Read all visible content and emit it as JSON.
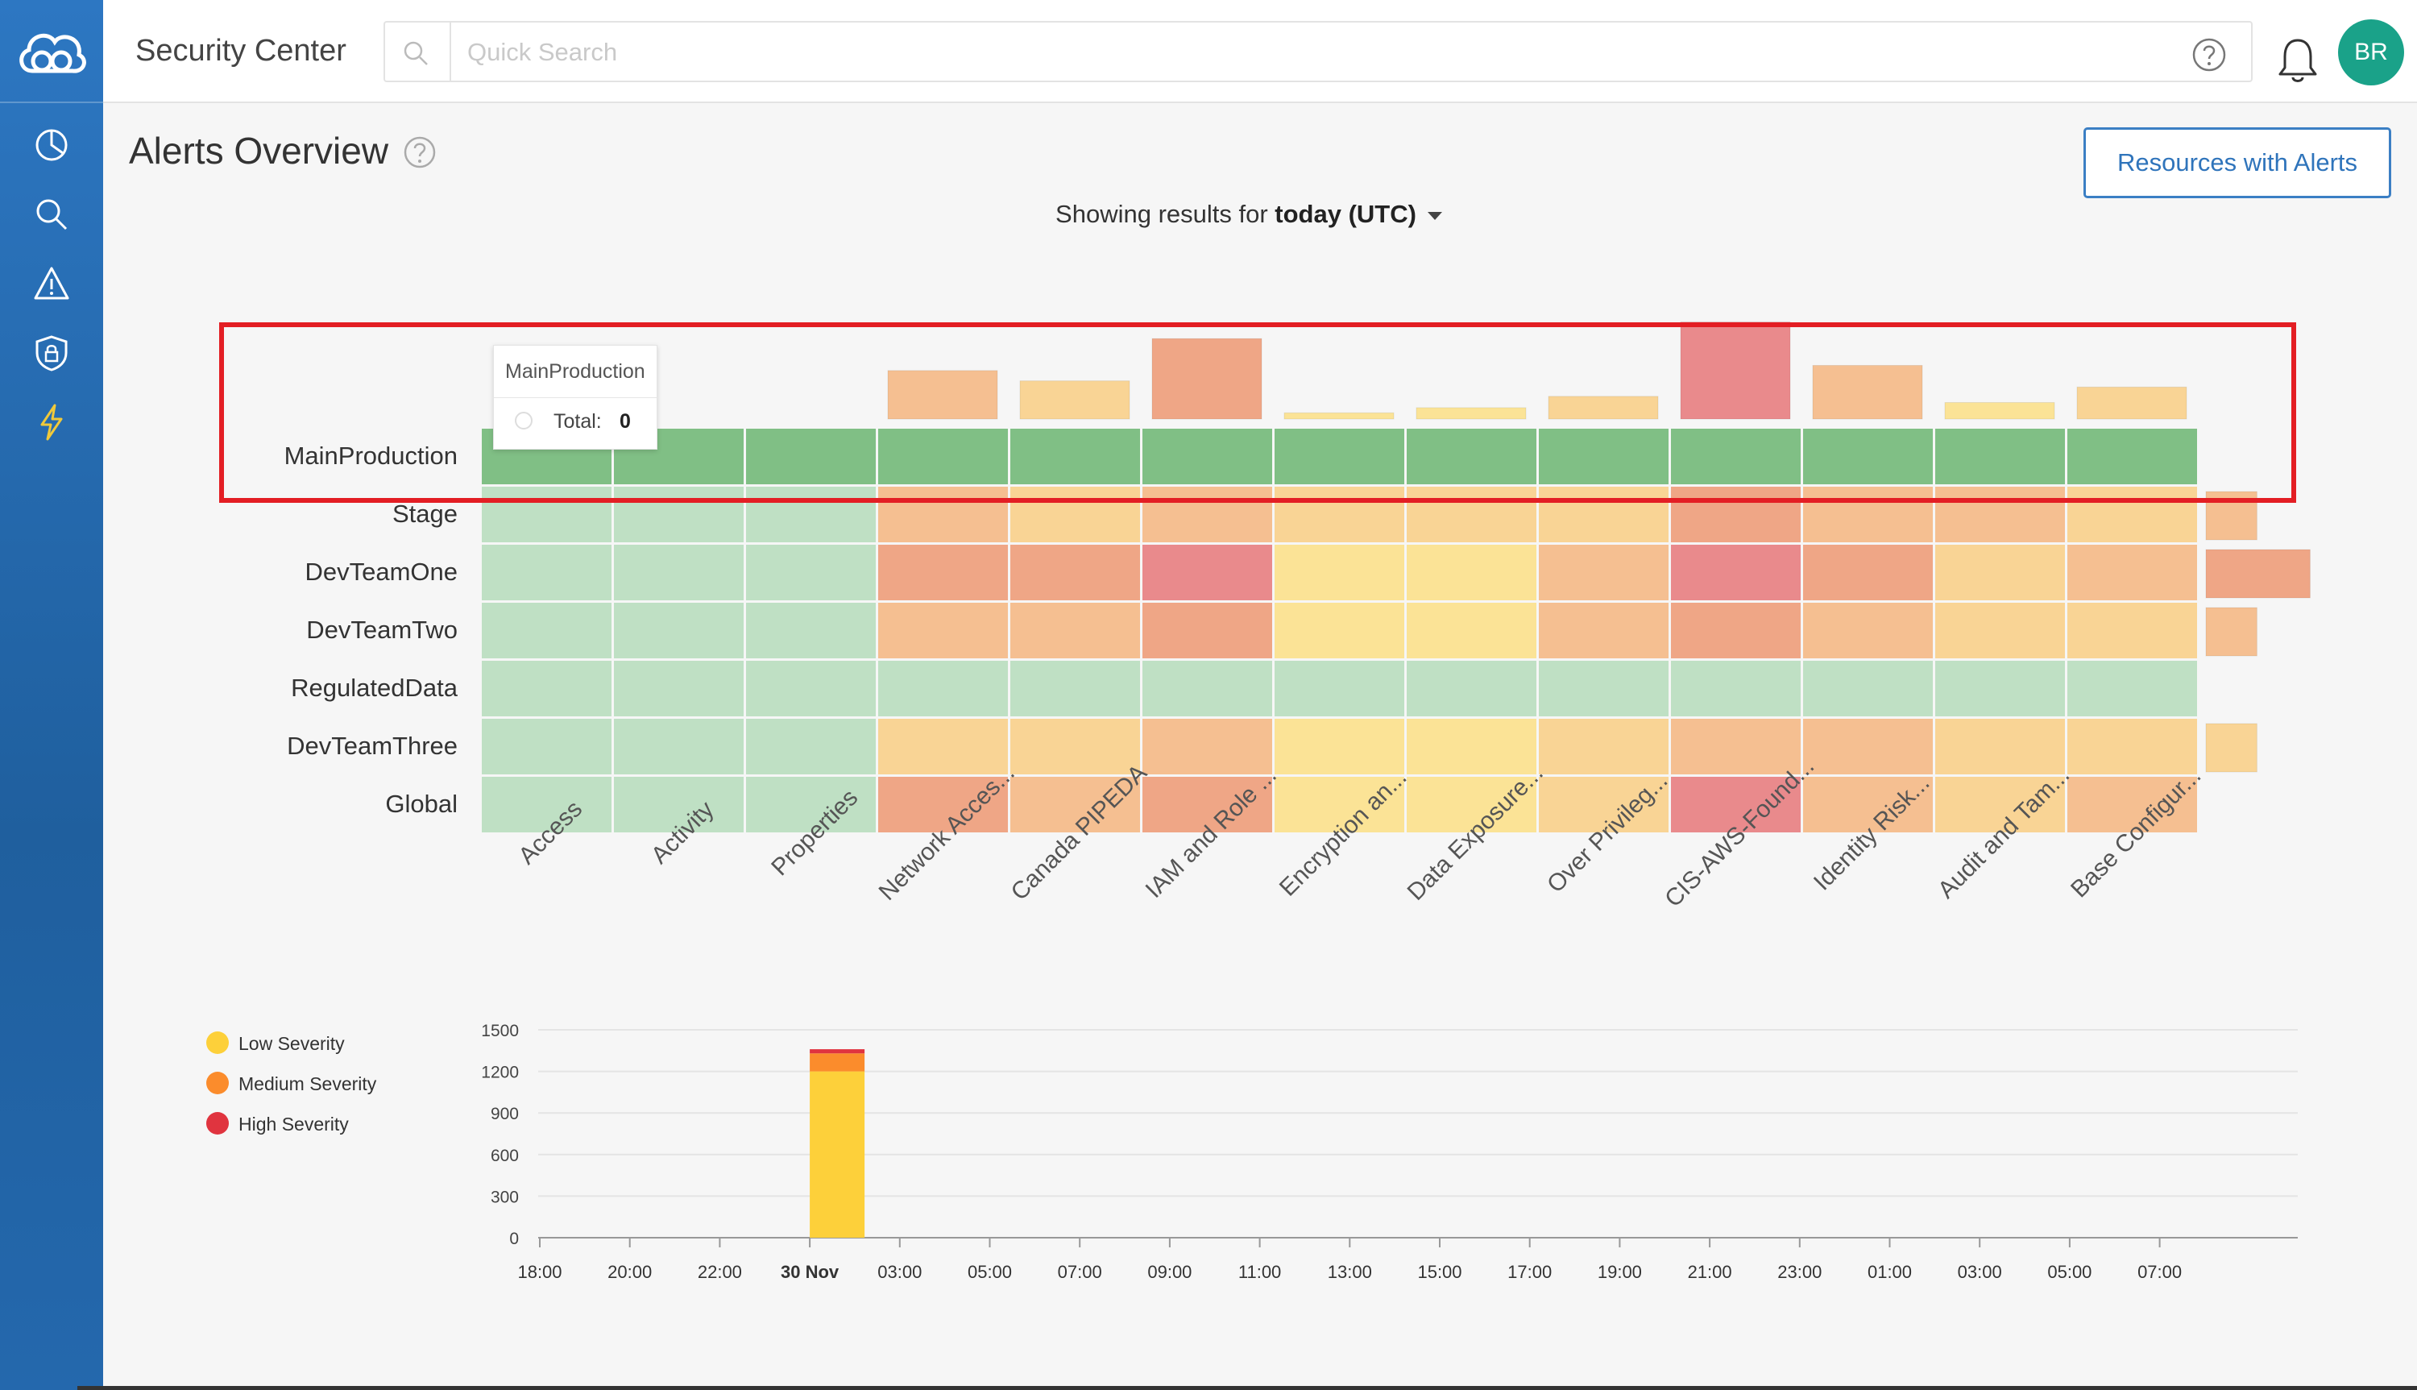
{
  "header": {
    "app_title": "Security Center",
    "search_placeholder": "Quick Search",
    "search_value": "",
    "avatar_initials": "BR"
  },
  "sidebar": {
    "items": [
      {
        "name": "dashboard",
        "icon": "pie-chart-icon"
      },
      {
        "name": "search",
        "icon": "search-icon"
      },
      {
        "name": "alerts",
        "icon": "warning-icon"
      },
      {
        "name": "security",
        "icon": "shield-lock-icon"
      },
      {
        "name": "actions",
        "icon": "lightning-icon"
      }
    ]
  },
  "page": {
    "title": "Alerts Overview",
    "resources_button": "Resources with Alerts",
    "showing_prefix": "Showing results for",
    "showing_value": "today (UTC)"
  },
  "tooltip": {
    "title": "MainProduction",
    "label": "Total:",
    "value": "0"
  },
  "colors": {
    "sidebar": "#2468ad",
    "accent": "#3b7fc4",
    "avatar": "#1aa289",
    "highlight": "#e31e24",
    "low": "#fdd03a",
    "medium": "#fb8c2c",
    "high": "#e0343f"
  },
  "chart_data": [
    {
      "type": "heatmap",
      "rows": [
        "MainProduction",
        "Stage",
        "DevTeamOne",
        "DevTeamTwo",
        "RegulatedData",
        "DevTeamThree",
        "Global"
      ],
      "columns": [
        "Access",
        "Activity",
        "Properties",
        "Network Acces...",
        "Canada PIPEDA",
        "IAM and Role ...",
        "Encryption an...",
        "Data Exposure...",
        "Over Privileg...",
        "CIS-AWS-Found...",
        "Identity Risk...",
        "Audit and Tam...",
        "Base Configur..."
      ],
      "levels_legend": "0=none(dark green),1=none(light green),2=low,3=low-medium,4=medium,5=medium-high,6=high",
      "cells": [
        [
          0,
          0,
          0,
          0,
          0,
          0,
          0,
          0,
          0,
          0,
          0,
          0,
          0
        ],
        [
          1,
          1,
          1,
          4,
          3,
          4,
          3,
          3,
          3,
          5,
          4,
          4,
          3
        ],
        [
          1,
          1,
          1,
          5,
          5,
          6,
          2,
          2,
          4,
          6,
          5,
          3,
          4
        ],
        [
          1,
          1,
          1,
          4,
          4,
          5,
          2,
          2,
          4,
          5,
          4,
          3,
          3
        ],
        [
          1,
          1,
          1,
          1,
          1,
          1,
          1,
          1,
          1,
          1,
          1,
          1,
          1
        ],
        [
          1,
          1,
          1,
          3,
          3,
          4,
          2,
          2,
          3,
          4,
          4,
          3,
          3
        ],
        [
          1,
          1,
          1,
          5,
          4,
          5,
          2,
          2,
          3,
          6,
          4,
          3,
          4
        ]
      ],
      "column_totals": [
        0,
        0,
        0,
        0.47,
        0.37,
        0.78,
        0.06,
        0.11,
        0.22,
        0.94,
        0.52,
        0.16,
        0.31
      ],
      "column_total_levels": [
        0,
        0,
        0,
        4,
        3,
        5,
        2,
        2,
        3,
        6,
        4,
        2,
        3
      ],
      "row_totals": [
        0,
        0.24,
        0.49,
        0.24,
        0,
        0.24,
        0
      ],
      "row_total_levels": [
        0,
        4,
        5,
        4,
        0,
        3,
        0
      ]
    },
    {
      "type": "bar",
      "stacked": true,
      "x_ticks": [
        "18:00",
        "20:00",
        "22:00",
        "30 Nov",
        "03:00",
        "05:00",
        "07:00",
        "09:00",
        "11:00",
        "13:00",
        "15:00",
        "17:00",
        "19:00",
        "21:00",
        "23:00",
        "01:00",
        "03:00",
        "05:00",
        "07:00"
      ],
      "bar_at": "30 Nov",
      "series": [
        {
          "name": "Low Severity",
          "values": [
            1200
          ]
        },
        {
          "name": "Medium Severity",
          "values": [
            130
          ]
        },
        {
          "name": "High Severity",
          "values": [
            30
          ]
        }
      ],
      "ylim": [
        0,
        1500
      ],
      "y_ticks": [
        "0",
        "300",
        "600",
        "900",
        "1200",
        "1500"
      ],
      "grid": true,
      "legend_position": "left"
    }
  ]
}
